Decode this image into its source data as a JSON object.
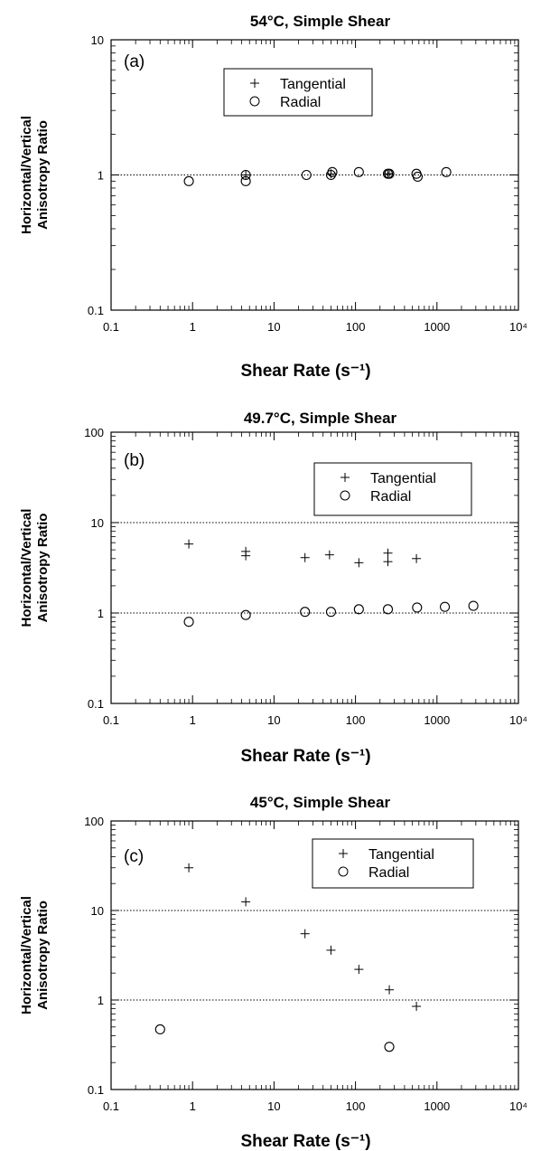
{
  "chart_data": [
    {
      "type": "scatter",
      "panel_label": "(a)",
      "title": "54°C, Simple Shear",
      "xlabel": "Shear Rate (s⁻¹)",
      "ylabel": [
        "Horizontal/Vertical",
        "Anisotropy Ratio"
      ],
      "x_scale": "log",
      "y_scale": "log",
      "xlim": [
        0.1,
        10000
      ],
      "ylim": [
        0.1,
        10
      ],
      "x_ticks": [
        "0.1",
        "1",
        "10",
        "100",
        "1000",
        "10⁴"
      ],
      "y_ticks": [
        "0.1",
        "1",
        "10"
      ],
      "reference_lines": [
        1
      ],
      "legend": {
        "position": "top-center",
        "entries": [
          "Tangential",
          "Radial"
        ]
      },
      "series": [
        {
          "name": "Tangential",
          "marker": "plus",
          "points": [
            [
              4.5,
              1.0
            ],
            [
              50,
              1.02
            ],
            [
              250,
              1.02
            ],
            [
              260,
              1.02
            ]
          ]
        },
        {
          "name": "Radial",
          "marker": "circle",
          "points": [
            [
              0.9,
              0.9
            ],
            [
              4.5,
              0.9
            ],
            [
              4.5,
              1.0
            ],
            [
              25,
              1.0
            ],
            [
              50,
              1.0
            ],
            [
              52,
              1.05
            ],
            [
              110,
              1.05
            ],
            [
              250,
              1.02
            ],
            [
              260,
              1.02
            ],
            [
              560,
              1.02
            ],
            [
              580,
              0.97
            ],
            [
              1300,
              1.05
            ]
          ]
        }
      ]
    },
    {
      "type": "scatter",
      "panel_label": "(b)",
      "title": "49.7°C, Simple Shear",
      "xlabel": "Shear Rate (s⁻¹)",
      "ylabel": [
        "Horizontal/Vertical",
        "Anisotropy Ratio"
      ],
      "x_scale": "log",
      "y_scale": "log",
      "xlim": [
        0.1,
        10000
      ],
      "ylim": [
        0.1,
        100
      ],
      "x_ticks": [
        "0.1",
        "1",
        "10",
        "100",
        "1000",
        "10⁴"
      ],
      "y_ticks": [
        "0.1",
        "1",
        "10",
        "100"
      ],
      "reference_lines": [
        1,
        10
      ],
      "legend": {
        "position": "top-right",
        "entries": [
          "Tangential",
          "Radial"
        ]
      },
      "series": [
        {
          "name": "Tangential",
          "marker": "plus",
          "points": [
            [
              0.9,
              5.8
            ],
            [
              4.5,
              4.3
            ],
            [
              4.5,
              4.8
            ],
            [
              24,
              4.1
            ],
            [
              48,
              4.4
            ],
            [
              110,
              3.6
            ],
            [
              250,
              3.7
            ],
            [
              250,
              4.6
            ],
            [
              560,
              4.0
            ]
          ]
        },
        {
          "name": "Radial",
          "marker": "circle",
          "points": [
            [
              0.9,
              0.8
            ],
            [
              4.5,
              0.95
            ],
            [
              24,
              1.03
            ],
            [
              50,
              1.03
            ],
            [
              110,
              1.1
            ],
            [
              250,
              1.1
            ],
            [
              570,
              1.15
            ],
            [
              1250,
              1.17
            ],
            [
              2800,
              1.2
            ]
          ]
        }
      ]
    },
    {
      "type": "scatter",
      "panel_label": "(c)",
      "title": "45°C, Simple Shear",
      "xlabel": "Shear Rate (s⁻¹)",
      "ylabel": [
        "Horizontal/Vertical",
        "Anisotropy Ratio"
      ],
      "x_scale": "log",
      "y_scale": "log",
      "xlim": [
        0.1,
        10000
      ],
      "ylim": [
        0.1,
        100
      ],
      "x_ticks": [
        "0.1",
        "1",
        "10",
        "100",
        "1000",
        "10⁴"
      ],
      "y_ticks": [
        "0.1",
        "1",
        "10",
        "100"
      ],
      "reference_lines": [
        1,
        10
      ],
      "legend": {
        "position": "top-right",
        "entries": [
          "Tangential",
          "Radial"
        ]
      },
      "series": [
        {
          "name": "Tangential",
          "marker": "plus",
          "points": [
            [
              0.9,
              30
            ],
            [
              4.5,
              12.5
            ],
            [
              24,
              5.5
            ],
            [
              50,
              3.6
            ],
            [
              110,
              2.2
            ],
            [
              260,
              1.3
            ],
            [
              560,
              0.85
            ]
          ]
        },
        {
          "name": "Radial",
          "marker": "circle",
          "points": [
            [
              0.4,
              0.47
            ],
            [
              260,
              0.3
            ]
          ]
        }
      ]
    }
  ]
}
